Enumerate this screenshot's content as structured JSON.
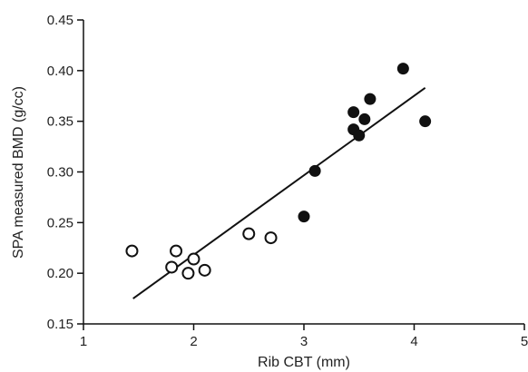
{
  "chart_data": {
    "type": "scatter",
    "xlabel": "Rib CBT (mm)",
    "ylabel": "SPA measured BMD (g/cc)",
    "xlim": [
      1,
      5
    ],
    "ylim": [
      0.15,
      0.45
    ],
    "xticks": [
      "1",
      "2",
      "3",
      "4",
      "5"
    ],
    "yticks": [
      "0.15",
      "0.20",
      "0.25",
      "0.30",
      "0.35",
      "0.40",
      "0.45"
    ],
    "grid": false,
    "series": [
      {
        "marker": "open-circle",
        "x": [
          1.44,
          1.8,
          1.84,
          1.95,
          2.0,
          2.1,
          2.5,
          2.7
        ],
        "y": [
          0.222,
          0.206,
          0.222,
          0.2,
          0.214,
          0.203,
          0.239,
          0.235
        ]
      },
      {
        "marker": "filled-circle",
        "x": [
          3.0,
          3.1,
          3.45,
          3.45,
          3.5,
          3.55,
          3.6,
          3.9,
          4.1
        ],
        "y": [
          0.256,
          0.301,
          0.359,
          0.342,
          0.336,
          0.352,
          0.372,
          0.402,
          0.35
        ]
      }
    ],
    "fit_line": {
      "x": [
        1.45,
        4.1
      ],
      "y": [
        0.175,
        0.383
      ]
    },
    "colors": {
      "marker": "#111111",
      "axis": "#111111",
      "text": "#222222"
    }
  }
}
